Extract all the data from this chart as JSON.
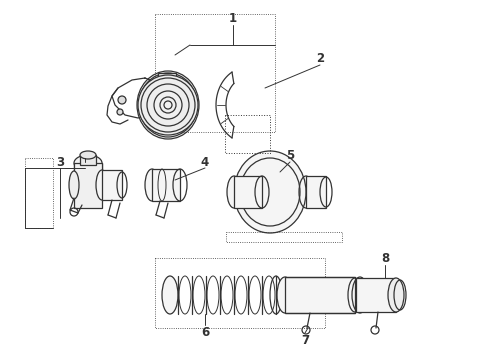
{
  "bg_color": "#ffffff",
  "line_color": "#333333",
  "lw": 0.9,
  "fig_width": 4.9,
  "fig_height": 3.6,
  "dpi": 100,
  "font_size": 8.5
}
